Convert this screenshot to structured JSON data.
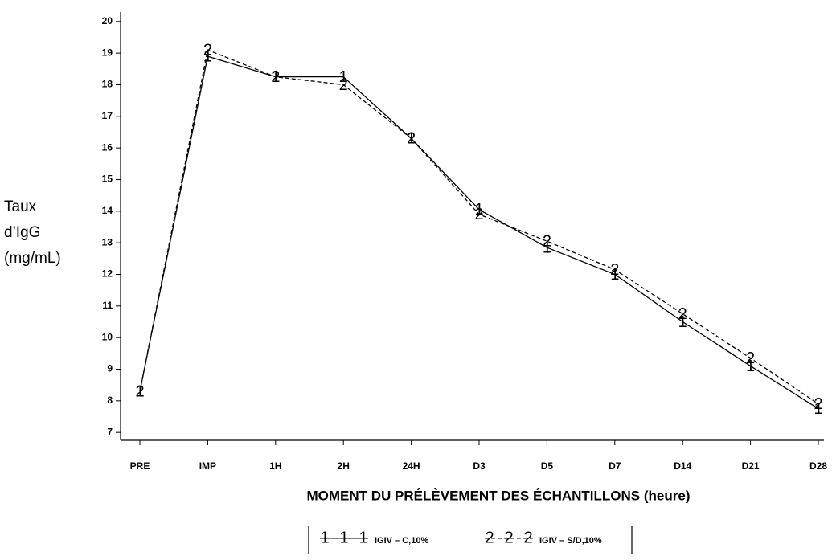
{
  "chart_data": {
    "type": "line",
    "ylabel": [
      "Taux",
      "d’IgG",
      "(mg/mL)"
    ],
    "xlabel": "MOMENT DU PRÉLÈVEMENT DES ÉCHANTILLONS (heure)",
    "categories": [
      "PRE",
      "IMP",
      "1H",
      "2H",
      "24H",
      "D3",
      "D5",
      "D7",
      "D14",
      "D21",
      "D28"
    ],
    "series": [
      {
        "name": "IGIV – C,10%",
        "symbol": "1",
        "color": "#000000",
        "dash": false,
        "values": [
          8.3,
          18.9,
          18.25,
          18.25,
          16.3,
          14.05,
          12.85,
          12.0,
          10.5,
          9.1,
          7.75
        ]
      },
      {
        "name": "IGIV – S/D,10%",
        "symbol": "2",
        "color": "#000000",
        "dash": true,
        "values": [
          8.3,
          19.1,
          18.25,
          18.0,
          16.3,
          13.9,
          13.05,
          12.15,
          10.75,
          9.35,
          7.9
        ]
      }
    ],
    "ylim": [
      6.75,
      20.3
    ],
    "yticks": [
      7,
      8,
      9,
      10,
      11,
      12,
      13,
      14,
      15,
      16,
      17,
      18,
      19,
      20
    ]
  }
}
